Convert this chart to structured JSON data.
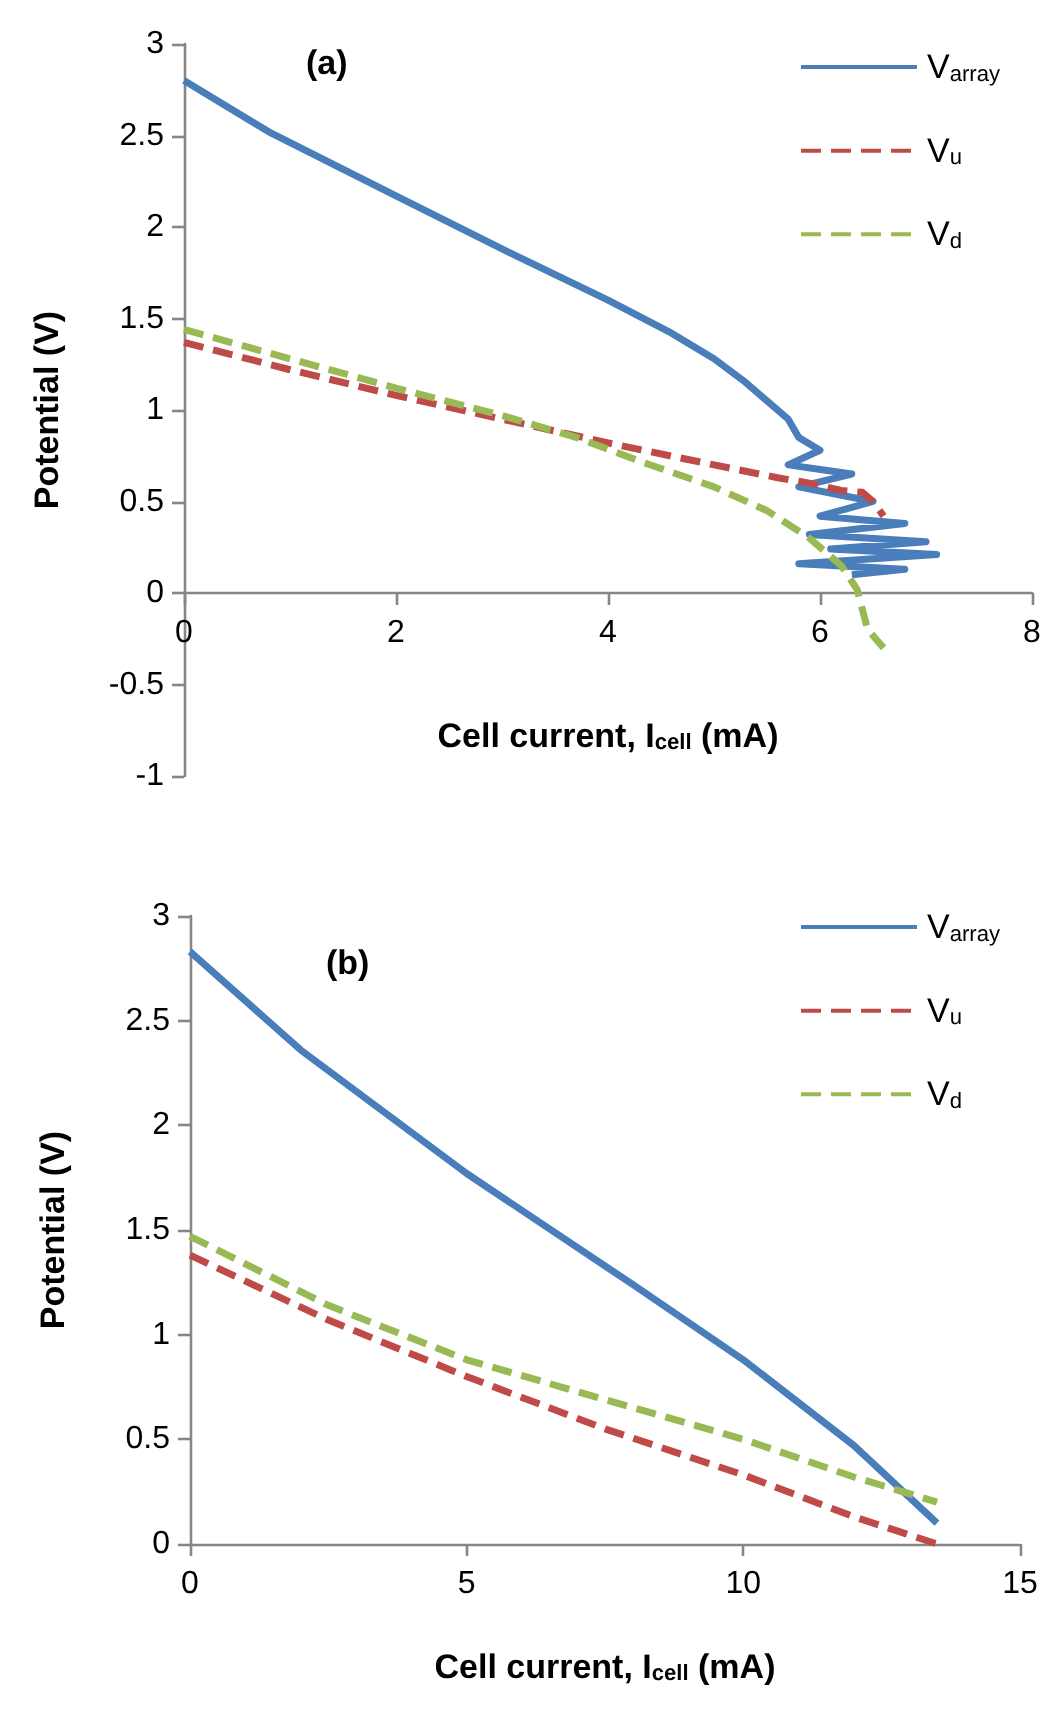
{
  "chart_data": [
    {
      "type": "line",
      "title": "(a)",
      "xlabel": "Cell current, I$_{cell}$ (mA)",
      "ylabel": "Potential (V)",
      "xlim": [
        0,
        8
      ],
      "xticks": [
        0,
        2,
        4,
        6,
        8
      ],
      "ylim": [
        -1,
        3
      ],
      "yticks": [
        -1,
        -0.5,
        0,
        0.5,
        1,
        1.5,
        2,
        2.5,
        3
      ],
      "grid": false,
      "legend": "top right",
      "marker": "none",
      "series": [
        {
          "name": "V$_{array}$",
          "color": "#4a7ebb",
          "line_style": "solid",
          "x": [
            0,
            0.8,
            2,
            3,
            4,
            4.6,
            5,
            5.3,
            5.5,
            5.7,
            5.8,
            6.0,
            5.7,
            6.3,
            5.8,
            6.5,
            6.0,
            6.8,
            5.9,
            7.0,
            6.1,
            7.1,
            5.8,
            6.8,
            6.3
          ],
          "values": [
            2.8,
            2.52,
            2.17,
            1.88,
            1.6,
            1.42,
            1.28,
            1.15,
            1.05,
            0.95,
            0.85,
            0.78,
            0.7,
            0.65,
            0.58,
            0.5,
            0.42,
            0.38,
            0.32,
            0.28,
            0.24,
            0.21,
            0.16,
            0.13,
            0.1
          ]
        },
        {
          "name": "V$_{u}$",
          "color": "#be4b48",
          "line_style": "dashed",
          "x": [
            0,
            1,
            2,
            3,
            4,
            5,
            5.6,
            5.9,
            6.2,
            6.4,
            6.5,
            6.6
          ],
          "values": [
            1.37,
            1.22,
            1.08,
            0.95,
            0.82,
            0.7,
            0.63,
            0.6,
            0.56,
            0.55,
            0.5,
            0.42
          ]
        },
        {
          "name": "V$_{d}$",
          "color": "#98b954",
          "line_style": "dashed",
          "x": [
            0,
            1,
            2,
            3,
            3.7,
            4.3,
            5,
            5.5,
            5.9,
            6.2,
            6.35,
            6.45,
            6.6
          ],
          "values": [
            1.44,
            1.28,
            1.12,
            0.97,
            0.85,
            0.72,
            0.58,
            0.45,
            0.3,
            0.15,
            0.02,
            -0.2,
            -0.3
          ]
        }
      ]
    },
    {
      "type": "line",
      "title": "(b)",
      "xlabel": "Cell current, I$_{cell}$ (mA)",
      "ylabel": "Potential (V)",
      "xlim": [
        0,
        15
      ],
      "xticks": [
        0,
        5,
        10,
        15
      ],
      "ylim": [
        0,
        3
      ],
      "yticks": [
        0,
        0.5,
        1,
        1.5,
        2,
        2.5,
        3
      ],
      "grid": false,
      "legend": "top right",
      "marker": "none",
      "series": [
        {
          "name": "V$_{array}$",
          "color": "#4a7ebb",
          "line_style": "solid",
          "x": [
            0,
            2,
            5,
            8,
            10,
            12,
            13.5
          ],
          "values": [
            2.83,
            2.36,
            1.77,
            1.24,
            0.88,
            0.47,
            0.1
          ]
        },
        {
          "name": "V$_{u}$",
          "color": "#be4b48",
          "line_style": "dashed",
          "x": [
            0,
            2.5,
            5,
            7.5,
            10,
            12,
            13.5
          ],
          "values": [
            1.38,
            1.07,
            0.8,
            0.55,
            0.33,
            0.13,
            0
          ]
        },
        {
          "name": "V$_{d}$",
          "color": "#98b954",
          "line_style": "dashed",
          "x": [
            0,
            2.5,
            5,
            7.5,
            10,
            12,
            13.5
          ],
          "values": [
            1.47,
            1.14,
            0.88,
            0.69,
            0.5,
            0.32,
            0.2
          ]
        }
      ]
    }
  ]
}
